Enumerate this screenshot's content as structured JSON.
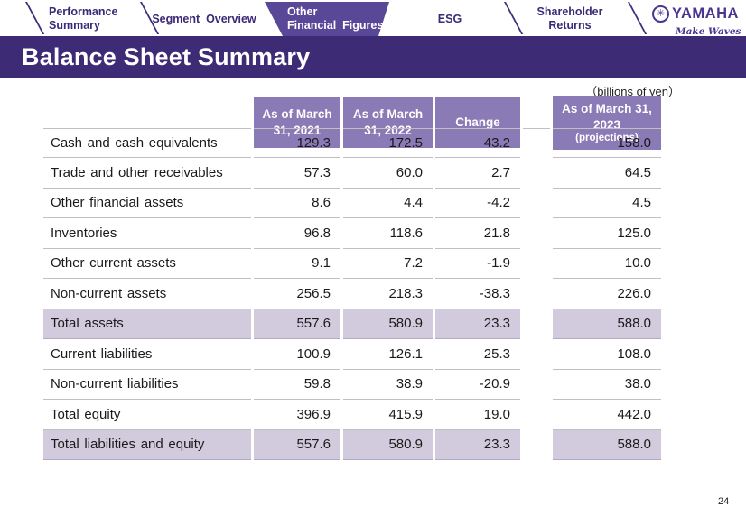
{
  "nav": {
    "tabs": [
      {
        "id": "performance-summary",
        "lines": [
          "Performance",
          "Summary"
        ],
        "active": false
      },
      {
        "id": "segment-overview",
        "lines": [
          "Segment  Overview"
        ],
        "active": false
      },
      {
        "id": "other-financial-figures",
        "lines": [
          "Other",
          "Financial  Figures"
        ],
        "active": true
      },
      {
        "id": "esg",
        "lines": [
          "ESG"
        ],
        "active": false
      },
      {
        "id": "shareholder-returns",
        "lines": [
          "Shareholder",
          "Returns"
        ],
        "active": false
      }
    ]
  },
  "logo": {
    "mark_glyph": "✳",
    "brand": "YAMAHA",
    "tagline": "Make Waves"
  },
  "title": "Balance Sheet Summary",
  "unit_note": "（billions of yen）",
  "page_number": "24",
  "table": {
    "columns": [
      "As of March\n31, 2021",
      "As of March\n31, 2022",
      "Change"
    ],
    "projection_column": {
      "main": "As of March 31,\n2023",
      "sub": "(projections)"
    },
    "rows": [
      {
        "label": "Cash and cash equivalents",
        "v2021": "129.3",
        "v2022": "172.5",
        "change": "43.2",
        "proj2023": "158.0",
        "highlight": false
      },
      {
        "label": "Trade and other receivables",
        "v2021": "57.3",
        "v2022": "60.0",
        "change": "2.7",
        "proj2023": "64.5",
        "highlight": false
      },
      {
        "label": "Other financial assets",
        "v2021": "8.6",
        "v2022": "4.4",
        "change": "-4.2",
        "proj2023": "4.5",
        "highlight": false
      },
      {
        "label": "Inventories",
        "v2021": "96.8",
        "v2022": "118.6",
        "change": "21.8",
        "proj2023": "125.0",
        "highlight": false
      },
      {
        "label": "Other current assets",
        "v2021": "9.1",
        "v2022": "7.2",
        "change": "-1.9",
        "proj2023": "10.0",
        "highlight": false
      },
      {
        "label": "Non-current assets",
        "v2021": "256.5",
        "v2022": "218.3",
        "change": "-38.3",
        "proj2023": "226.0",
        "highlight": false
      },
      {
        "label": "Total assets",
        "v2021": "557.6",
        "v2022": "580.9",
        "change": "23.3",
        "proj2023": "588.0",
        "highlight": true
      },
      {
        "label": "Current liabilities",
        "v2021": "100.9",
        "v2022": "126.1",
        "change": "25.3",
        "proj2023": "108.0",
        "highlight": false
      },
      {
        "label": "Non-current liabilities",
        "v2021": "59.8",
        "v2022": "38.9",
        "change": "-20.9",
        "proj2023": "38.0",
        "highlight": false
      },
      {
        "label": "Total equity",
        "v2021": "396.9",
        "v2022": "415.9",
        "change": "19.0",
        "proj2023": "442.0",
        "highlight": false
      },
      {
        "label": "Total liabilities and equity",
        "v2021": "557.6",
        "v2022": "580.9",
        "change": "23.3",
        "proj2023": "588.0",
        "highlight": true
      }
    ]
  }
}
